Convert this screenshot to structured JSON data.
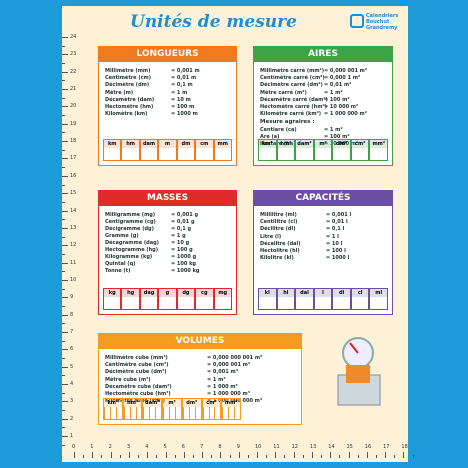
{
  "header": {
    "title": "Unités de mesure",
    "logo": [
      "Calendriers",
      "Bouchut",
      "Grandremy"
    ]
  },
  "boxes": [
    {
      "title": "LONGUEURS",
      "color": "#f07a1c",
      "rows": [
        [
          "Millimètre (mm)",
          "= 0,001 m"
        ],
        [
          "Centimètre (cm)",
          "= 0,01 m"
        ],
        [
          "Décimètre (dm)",
          "= 0,1 m"
        ],
        [
          "Mètre (m)",
          "= 1 m"
        ],
        [
          "Décamètre (dam)",
          "= 10 m"
        ],
        [
          "Hectomètre (hm)",
          "= 100 m"
        ],
        [
          "Kilomètre (km)",
          "= 1000 m"
        ]
      ],
      "units": [
        "km",
        "hm",
        "dam",
        "m",
        "dm",
        "cm",
        "mm"
      ]
    },
    {
      "title": "AIRES",
      "color": "#3ca446",
      "rows": [
        [
          "Millimètre carré (mm²)",
          "= 0,000 001 m²"
        ],
        [
          "Centimètre carré (cm²)",
          "= 0,000 1 m²"
        ],
        [
          "Décimètre carré (dm²)",
          "= 0,01 m²"
        ],
        [
          "Mètre carré (m²)",
          "= 1 m²"
        ],
        [
          "Décamètre carré (dam²)",
          "= 100 m²"
        ],
        [
          "Hectomètre carré (hm²)",
          "= 10 000 m²"
        ],
        [
          "Kilomètre carré (km²)",
          "= 1 000 000 m²"
        ]
      ],
      "agraires": {
        "title": "Mesure agraires :",
        "rows": [
          [
            "Centiare (ca)",
            "= 1 m²"
          ],
          [
            "Are (a)",
            "= 100 m²"
          ],
          [
            "Hectare (ha)",
            "= 10 000 m²"
          ]
        ]
      },
      "units": [
        "km²",
        "hm²",
        "dam²",
        "m²",
        "dm²",
        "cm²",
        "mm²"
      ]
    },
    {
      "title": "MASSES",
      "color": "#e12a2a",
      "rows": [
        [
          "Milligramme (mg)",
          "= 0,001 g"
        ],
        [
          "Centigramme (cg)",
          "= 0,01 g"
        ],
        [
          "Décigramme (dg)",
          "= 0,1 g"
        ],
        [
          "Gramme (g)",
          "= 1 g"
        ],
        [
          "Décagramme (dag)",
          "= 10 g"
        ],
        [
          "Hectogramme (hg)",
          "= 100 g"
        ],
        [
          "Kilogramme (kg)",
          "= 1000 g"
        ],
        [
          "Quintal (q)",
          "= 100 kg"
        ],
        [
          "Tonne (t)",
          "= 1000 kg"
        ]
      ],
      "units": [
        "kg",
        "hg",
        "dag",
        "g",
        "dg",
        "cg",
        "mg"
      ]
    },
    {
      "title": "CAPACITÉS",
      "color": "#6b4fa0",
      "rows": [
        [
          "Millilitre (ml)",
          "= 0,001 l"
        ],
        [
          "Centilitre (cl)",
          "= 0,01 l"
        ],
        [
          "Décilitre (dl)",
          "= 0,1 l"
        ],
        [
          "Litre (l)",
          "= 1 l"
        ],
        [
          "Décalitre (dal)",
          "= 10 l"
        ],
        [
          "Hectolitre (hl)",
          "= 100 l"
        ],
        [
          "Kilolitre (kl)",
          "= 1000 l"
        ]
      ],
      "units": [
        "kl",
        "hl",
        "dal",
        "l",
        "dl",
        "cl",
        "ml"
      ]
    },
    {
      "title": "VOLUMES",
      "color": "#f59b1f",
      "rows": [
        [
          "Millimètre cube (mm³)",
          "= 0,000 000 001 m³"
        ],
        [
          "Centimètre cube (cm³)",
          "= 0,000 001 m³"
        ],
        [
          "Décimètre cube (dm³)",
          "= 0,001 m³"
        ],
        [
          "Mètre cube (m³)",
          "= 1 m³"
        ],
        [
          "Décamètre cube (dam³)",
          "= 1 000 m³"
        ],
        [
          "Hectomètre cube (hm³)",
          "= 1 000 000 m³"
        ],
        [
          "Kilomètre cube (km³)",
          "= 1 000 000 000 m³"
        ]
      ],
      "units": [
        "km³",
        "hm³",
        "dam³",
        "m³",
        "dm³",
        "cm³",
        "mm³"
      ]
    }
  ],
  "ruler": {
    "vertical": [
      24,
      23,
      22,
      21,
      20,
      19,
      18,
      17,
      16,
      15,
      14,
      13,
      12,
      11,
      10,
      9,
      8,
      7,
      6,
      5,
      4,
      3,
      2,
      1
    ],
    "horizontal": [
      0,
      1,
      2,
      3,
      4,
      5,
      6,
      7,
      8,
      9,
      10,
      11,
      12,
      13,
      14,
      15,
      16,
      17,
      18
    ]
  }
}
